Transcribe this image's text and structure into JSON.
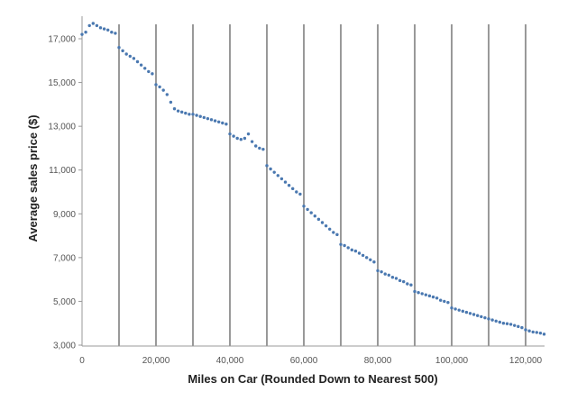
{
  "chart_data": {
    "type": "scatter",
    "title": "",
    "xlabel": "Miles on Car (Rounded Down to Nearest 500)",
    "ylabel": "Average sales price ($)",
    "xlim": [
      0,
      125000
    ],
    "ylim": [
      3000,
      18000
    ],
    "x_ticks": [
      0,
      20000,
      40000,
      60000,
      80000,
      100000,
      120000
    ],
    "x_tick_labels": [
      "0",
      "20,000",
      "40,000",
      "60,000",
      "80,000",
      "100,000",
      "120,000"
    ],
    "y_ticks": [
      3000,
      5000,
      7000,
      9000,
      11000,
      13000,
      15000,
      17000
    ],
    "y_tick_labels": [
      "3,000",
      "5,000",
      "7,000",
      "9,000",
      "11,000",
      "13,000",
      "15,000",
      "17,000"
    ],
    "vertical_reference_lines": [
      10000,
      20000,
      30000,
      40000,
      50000,
      60000,
      70000,
      80000,
      90000,
      100000,
      110000,
      120000
    ],
    "grid": false,
    "legend": "none",
    "point_color": "#4a78b0",
    "x": [
      0,
      1000,
      2000,
      3000,
      4000,
      5000,
      6000,
      7000,
      8000,
      9000,
      10000,
      11000,
      12000,
      13000,
      14000,
      15000,
      16000,
      17000,
      18000,
      19000,
      20000,
      21000,
      22000,
      23000,
      24000,
      25000,
      26000,
      27000,
      28000,
      29000,
      30000,
      31000,
      32000,
      33000,
      34000,
      35000,
      36000,
      37000,
      38000,
      39000,
      40000,
      41000,
      42000,
      43000,
      44000,
      45000,
      46000,
      47000,
      48000,
      49000,
      50000,
      51000,
      52000,
      53000,
      54000,
      55000,
      56000,
      57000,
      58000,
      59000,
      60000,
      61000,
      62000,
      63000,
      64000,
      65000,
      66000,
      67000,
      68000,
      69000,
      70000,
      71000,
      72000,
      73000,
      74000,
      75000,
      76000,
      77000,
      78000,
      79000,
      80000,
      81000,
      82000,
      83000,
      84000,
      85000,
      86000,
      87000,
      88000,
      89000,
      90000,
      91000,
      92000,
      93000,
      94000,
      95000,
      96000,
      97000,
      98000,
      99000,
      100000,
      101000,
      102000,
      103000,
      104000,
      105000,
      106000,
      107000,
      108000,
      109000,
      110000,
      111000,
      112000,
      113000,
      114000,
      115000,
      116000,
      117000,
      118000,
      119000,
      120000,
      121000,
      122000,
      123000,
      124000,
      125000
    ],
    "y": [
      17200,
      17300,
      17600,
      17700,
      17600,
      17500,
      17450,
      17400,
      17300,
      17250,
      16600,
      16450,
      16300,
      16200,
      16100,
      15950,
      15800,
      15650,
      15500,
      15400,
      14900,
      14800,
      14650,
      14450,
      14100,
      13800,
      13700,
      13650,
      13600,
      13550,
      13550,
      13500,
      13450,
      13400,
      13350,
      13300,
      13250,
      13200,
      13150,
      13100,
      12650,
      12550,
      12450,
      12400,
      12450,
      12650,
      12300,
      12100,
      12000,
      11950,
      11200,
      11050,
      10900,
      10750,
      10600,
      10450,
      10300,
      10150,
      10000,
      9900,
      9350,
      9200,
      9050,
      8900,
      8750,
      8600,
      8450,
      8300,
      8150,
      8050,
      7600,
      7550,
      7450,
      7350,
      7300,
      7200,
      7100,
      7000,
      6900,
      6800,
      6400,
      6350,
      6250,
      6200,
      6100,
      6050,
      5950,
      5900,
      5800,
      5750,
      5450,
      5400,
      5350,
      5300,
      5250,
      5200,
      5150,
      5050,
      5000,
      4950,
      4700,
      4650,
      4600,
      4550,
      4500,
      4450,
      4400,
      4350,
      4300,
      4250,
      4200,
      4150,
      4100,
      4050,
      4000,
      3980,
      3950,
      3900,
      3850,
      3800,
      3700,
      3650,
      3600,
      3580,
      3550,
      3500
    ]
  }
}
